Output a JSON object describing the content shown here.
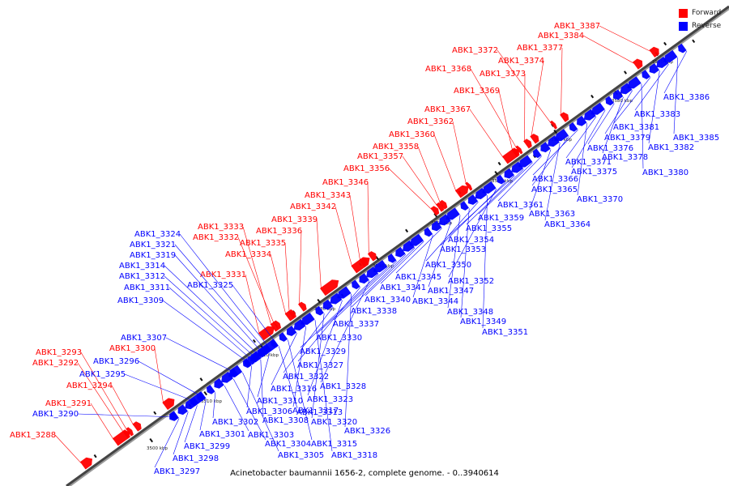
{
  "legend": {
    "forward_label": "Forward",
    "reverse_label": "Reverse",
    "forward_color": "#ff0000",
    "reverse_color": "#0000ff"
  },
  "caption": "Acinetobacter baumannii 1656-2, complete genome. - 0..3940614",
  "scale_ticks": [
    "3500 kbp",
    "3510 kbp",
    "3520 kbp",
    "3530 kbp",
    "3540 kbp",
    "3550 kbp",
    "3560 kbp",
    "3570 kbp",
    "3580 kbp",
    "3590 kbp"
  ],
  "forward_labels": [
    "ABK1_3288",
    "ABK1_3291",
    "ABK1_3294",
    "ABK1_3292",
    "ABK1_3293",
    "ABK1_3300",
    "ABK1_3331",
    "ABK1_3334",
    "ABK1_3332",
    "ABK1_3335",
    "ABK1_3333",
    "ABK1_3336",
    "ABK1_3339",
    "ABK1_3342",
    "ABK1_3343",
    "ABK1_3346",
    "ABK1_3356",
    "ABK1_3357",
    "ABK1_3358",
    "ABK1_3360",
    "ABK1_3362",
    "ABK1_3367",
    "ABK1_3369",
    "ABK1_3373",
    "ABK1_3368",
    "ABK1_3374",
    "ABK1_3372",
    "ABK1_3377",
    "ABK1_3384",
    "ABK1_3387"
  ],
  "reverse_labels_left": [
    "ABK1_3290",
    "ABK1_3295",
    "ABK1_3296",
    "ABK1_3307",
    "ABK1_3309",
    "ABK1_3311",
    "ABK1_3312",
    "ABK1_3314",
    "ABK1_3319",
    "ABK1_3321",
    "ABK1_3324",
    "ABK1_3325"
  ],
  "reverse_labels_right": [
    "ABK1_3297",
    "ABK1_3298",
    "ABK1_3299",
    "ABK1_3301",
    "ABK1_3302",
    "ABK1_3303",
    "ABK1_3304",
    "ABK1_3305",
    "ABK1_3306",
    "ABK1_3308",
    "ABK1_3310",
    "ABK1_3313",
    "ABK1_3315",
    "ABK1_3316",
    "ABK1_3317",
    "ABK1_3318",
    "ABK1_3320",
    "ABK1_3322",
    "ABK1_3323",
    "ABK1_3326",
    "ABK1_3327",
    "ABK1_3328",
    "ABK1_3329",
    "ABK1_3330",
    "ABK1_3337",
    "ABK1_3338",
    "ABK1_3340",
    "ABK1_3341",
    "ABK1_3344",
    "ABK1_3345",
    "ABK1_3347",
    "ABK1_3348",
    "ABK1_3349",
    "ABK1_3350",
    "ABK1_3351",
    "ABK1_3352",
    "ABK1_3353",
    "ABK1_3354",
    "ABK1_3355",
    "ABK1_3359",
    "ABK1_3361",
    "ABK1_3363",
    "ABK1_3364",
    "ABK1_3365",
    "ABK1_3366",
    "ABK1_3370",
    "ABK1_3371",
    "ABK1_3375",
    "ABK1_3376",
    "ABK1_3378",
    "ABK1_3379",
    "ABK1_3380",
    "ABK1_3381",
    "ABK1_3382",
    "ABK1_3383",
    "ABK1_3385",
    "ABK1_3386"
  ]
}
